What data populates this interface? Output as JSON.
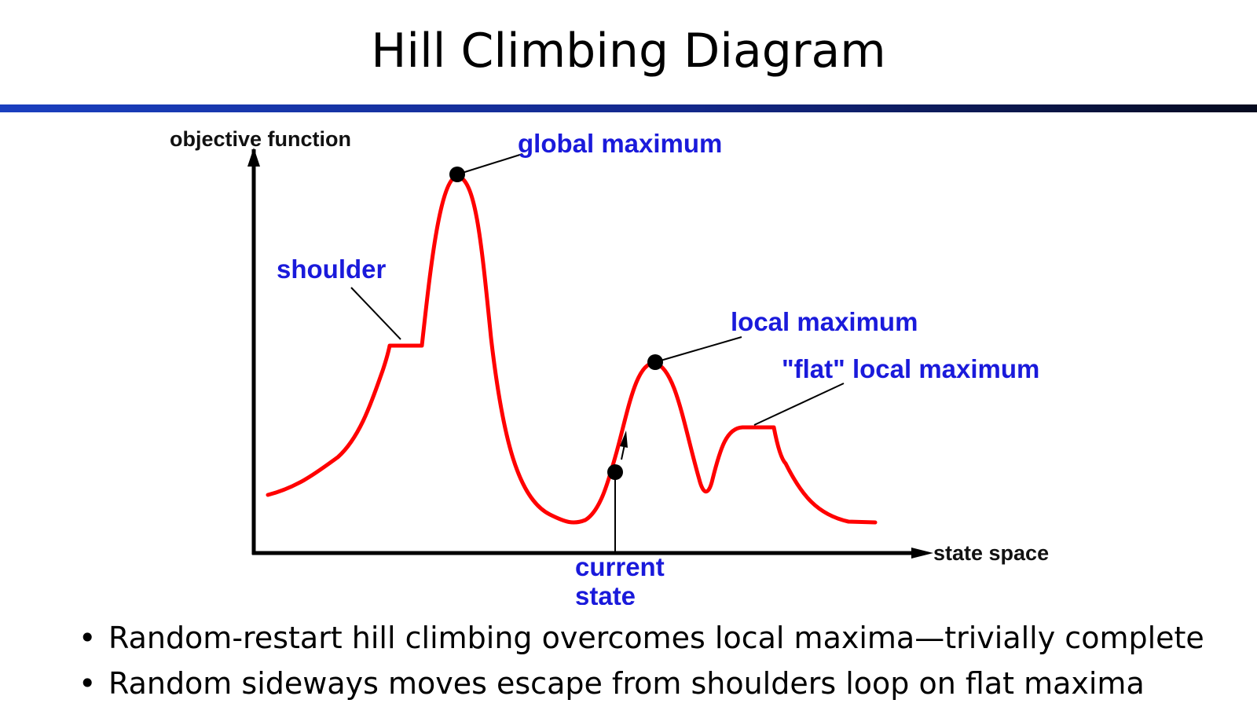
{
  "slide": {
    "title": "Hill Climbing Diagram",
    "rule_colors": [
      "#1a3fbf",
      "#050a1e"
    ]
  },
  "diagram": {
    "curve_color": "#ff0000",
    "label_color": "#1a1adb",
    "y_axis_label": "objective function",
    "x_axis_label": "state space",
    "labels": {
      "global_maximum": "global maximum",
      "shoulder": "shoulder",
      "local_maximum": "local maximum",
      "flat_local_maximum": "\"flat\" local maximum",
      "current_state_line1": "current",
      "current_state_line2": "state"
    }
  },
  "bullets": [
    "Random-restart hill climbing overcomes local maxima—trivially complete",
    "Random sideways moves escape from shoulders loop on flat maxima"
  ]
}
